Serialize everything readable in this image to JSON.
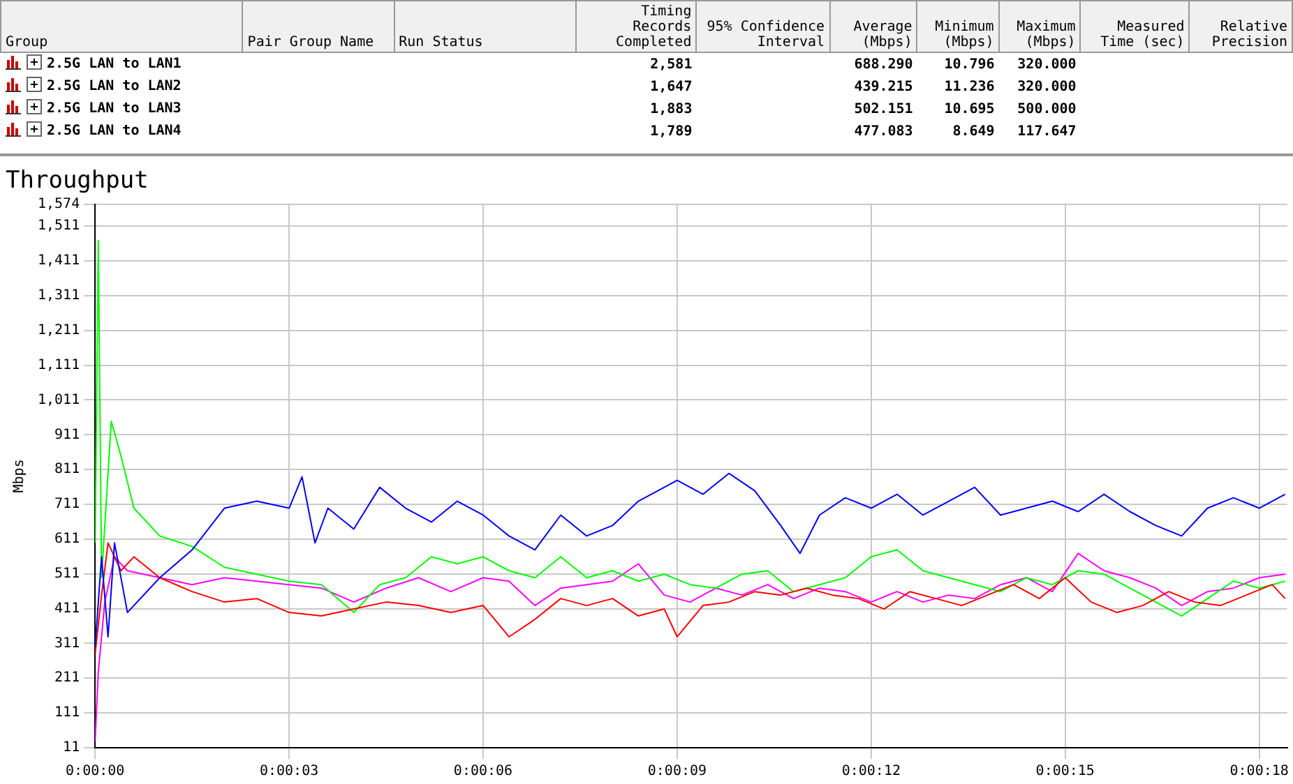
{
  "chart_data": [
    {
      "type": "other",
      "categories": [
        "Group",
        "Pair Group Name",
        "Run Status",
        "Timing Records Completed",
        "95% Confidence Interval",
        "Average (Mbps)",
        "Minimum (Mbps)",
        "Maximum (Mbps)",
        "Measured Time (sec)",
        "Relative Precision"
      ],
      "annotations": [
        "2.5G LAN to LAN1",
        null,
        null,
        "2,581",
        null,
        "688.290",
        "10.796",
        "320.000",
        null,
        null,
        "2.5G LAN to LAN2",
        null,
        null,
        "1,647",
        null,
        "439.215",
        "11.236",
        "320.000",
        null,
        null,
        "2.5G LAN to LAN3",
        null,
        null,
        "1,883",
        null,
        "502.151",
        "10.695",
        "500.000",
        null,
        null,
        "2.5G LAN to LAN4",
        null,
        null,
        "1,789",
        null,
        "477.083",
        "8.649",
        "117.647",
        null,
        null
      ]
    },
    {
      "type": "line",
      "title": "Throughput",
      "ylabel": "Mbps",
      "grid": true,
      "legend": false,
      "marker": "none",
      "xlim": [
        0,
        18.43
      ],
      "xticks": [
        {
          "value": 0,
          "label": "0:00:00"
        },
        {
          "value": 3,
          "label": "0:00:03"
        },
        {
          "value": 6,
          "label": "0:00:06"
        },
        {
          "value": 9,
          "label": "0:00:09"
        },
        {
          "value": 12,
          "label": "0:00:12"
        },
        {
          "value": 15,
          "label": "0:00:15"
        },
        {
          "value": 18,
          "label": "0:00:18"
        }
      ],
      "ylim": [
        11,
        1574
      ],
      "yticks": [
        11,
        111,
        211,
        311,
        411,
        511,
        611,
        711,
        811,
        911,
        {
          "value": 1011,
          "label": "1,011"
        },
        {
          "value": 1111,
          "label": "1,111"
        },
        {
          "value": 1211,
          "label": "1,211"
        },
        {
          "value": 1311,
          "label": "1,311"
        },
        {
          "value": 1411,
          "label": "1,411"
        },
        {
          "value": 1511,
          "label": "1,511"
        },
        {
          "value": 1574,
          "label": "1,574"
        }
      ],
      "series": [
        {
          "color": "#0000ff",
          "x": [
            0,
            0.1,
            0.2,
            0.3,
            0.5,
            1,
            1.5,
            2,
            2.5,
            3,
            3.2,
            3.4,
            3.6,
            4,
            4.4,
            4.8,
            5.2,
            5.6,
            6,
            6.4,
            6.8,
            7.2,
            7.6,
            8,
            8.4,
            8.8,
            9,
            9.4,
            9.8,
            10.2,
            10.6,
            10.9,
            11.2,
            11.6,
            12,
            12.4,
            12.8,
            13.2,
            13.6,
            14,
            14.4,
            14.8,
            15.2,
            15.6,
            16,
            16.4,
            16.8,
            17.2,
            17.6,
            18,
            18.4
          ],
          "values": [
            300,
            560,
            330,
            600,
            400,
            500,
            580,
            700,
            720,
            700,
            790,
            600,
            700,
            640,
            760,
            700,
            660,
            720,
            680,
            620,
            580,
            680,
            620,
            650,
            720,
            760,
            780,
            740,
            800,
            750,
            650,
            570,
            680,
            730,
            700,
            740,
            680,
            720,
            760,
            680,
            700,
            720,
            690,
            740,
            690,
            650,
            620,
            700,
            730,
            700,
            740
          ]
        },
        {
          "color": "#ff0000",
          "x": [
            0,
            0.1,
            0.2,
            0.4,
            0.6,
            1,
            1.5,
            2,
            2.5,
            3,
            3.5,
            4,
            4.5,
            5,
            5.5,
            6,
            6.4,
            6.8,
            7.2,
            7.6,
            8,
            8.4,
            8.8,
            9,
            9.4,
            9.8,
            10.2,
            10.6,
            11,
            11.4,
            11.8,
            12.2,
            12.6,
            13,
            13.4,
            13.8,
            14.2,
            14.6,
            15,
            15.4,
            15.8,
            16.2,
            16.6,
            17,
            17.4,
            17.8,
            18.2,
            18.4
          ],
          "values": [
            280,
            450,
            600,
            520,
            560,
            500,
            460,
            430,
            440,
            400,
            390,
            410,
            430,
            420,
            400,
            420,
            330,
            380,
            440,
            420,
            440,
            390,
            410,
            330,
            420,
            430,
            460,
            450,
            470,
            450,
            440,
            410,
            460,
            440,
            420,
            450,
            480,
            440,
            500,
            430,
            400,
            420,
            460,
            430,
            420,
            450,
            480,
            440
          ]
        },
        {
          "color": "#00ff00",
          "x": [
            0,
            0.05,
            0.1,
            0.25,
            0.4,
            0.6,
            1,
            1.5,
            2,
            2.5,
            3,
            3.5,
            4,
            4.4,
            4.8,
            5.2,
            5.6,
            6,
            6.4,
            6.8,
            7.2,
            7.6,
            8,
            8.4,
            8.8,
            9.2,
            9.6,
            10,
            10.4,
            10.8,
            11.2,
            11.6,
            12,
            12.4,
            12.8,
            13.2,
            13.6,
            14,
            14.4,
            14.8,
            15.2,
            15.6,
            16,
            16.4,
            16.8,
            17.2,
            17.6,
            18,
            18.4
          ],
          "values": [
            600,
            1470,
            500,
            950,
            850,
            700,
            620,
            590,
            530,
            510,
            490,
            480,
            400,
            480,
            500,
            560,
            540,
            560,
            520,
            500,
            560,
            500,
            520,
            490,
            510,
            480,
            470,
            510,
            520,
            460,
            480,
            500,
            560,
            580,
            520,
            500,
            480,
            460,
            500,
            480,
            520,
            510,
            470,
            430,
            390,
            440,
            490,
            470,
            490
          ]
        },
        {
          "color": "#ff00ff",
          "x": [
            0,
            0.05,
            0.15,
            0.3,
            0.5,
            1,
            1.5,
            2,
            2.5,
            3,
            3.5,
            4,
            4.5,
            5,
            5.5,
            6,
            6.4,
            6.8,
            7.2,
            7.6,
            8,
            8.4,
            8.8,
            9.2,
            9.6,
            10,
            10.4,
            10.8,
            11.2,
            11.6,
            12,
            12.4,
            12.8,
            13.2,
            13.6,
            14,
            14.4,
            14.8,
            15.2,
            15.6,
            16,
            16.4,
            16.8,
            17.2,
            17.6,
            18,
            18.4
          ],
          "values": [
            30,
            230,
            430,
            560,
            520,
            500,
            480,
            500,
            490,
            480,
            470,
            430,
            470,
            500,
            460,
            500,
            490,
            420,
            470,
            480,
            490,
            540,
            450,
            430,
            470,
            450,
            480,
            440,
            470,
            460,
            430,
            460,
            430,
            450,
            440,
            480,
            500,
            460,
            570,
            520,
            500,
            470,
            420,
            460,
            470,
            500,
            510
          ]
        }
      ]
    }
  ]
}
